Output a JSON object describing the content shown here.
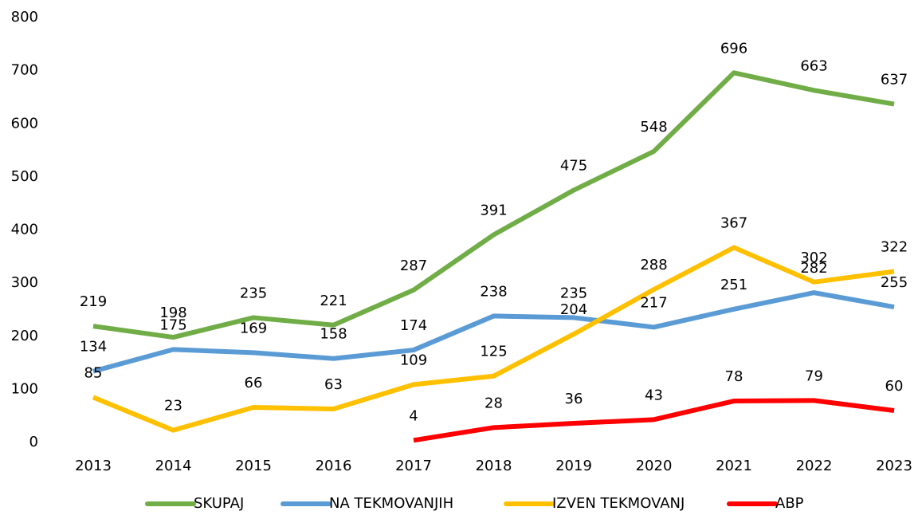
{
  "chart_data": {
    "type": "line",
    "categories": [
      "2013",
      "2014",
      "2015",
      "2016",
      "2017",
      "2018",
      "2019",
      "2020",
      "2021",
      "2022",
      "2023"
    ],
    "series": [
      {
        "name": "SKUPAJ",
        "color": "#70ad47",
        "values": [
          219,
          198,
          235,
          221,
          287,
          391,
          475,
          548,
          696,
          663,
          637
        ]
      },
      {
        "name": "NA TEKMOVANJIH",
        "color": "#5b9bd5",
        "values": [
          134,
          175,
          169,
          158,
          174,
          238,
          235,
          217,
          251,
          282,
          255
        ]
      },
      {
        "name": "IZVEN TEKMOVANJ",
        "color": "#ffc000",
        "values": [
          85,
          23,
          66,
          63,
          109,
          125,
          204,
          288,
          367,
          302,
          322
        ]
      },
      {
        "name": "ABP",
        "color": "#ff0000",
        "values": [
          null,
          null,
          null,
          null,
          4,
          28,
          36,
          43,
          78,
          79,
          60
        ]
      }
    ],
    "ylim": [
      0,
      800
    ],
    "yticks": [
      0,
      100,
      200,
      300,
      400,
      500,
      600,
      700,
      800
    ],
    "grid": false,
    "legend": "bottom"
  }
}
